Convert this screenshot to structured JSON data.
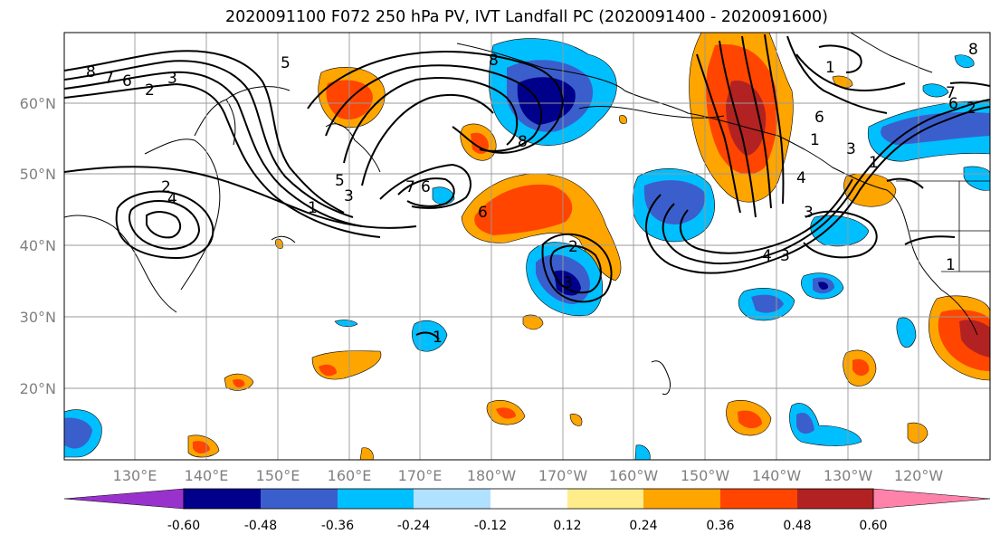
{
  "title": "2020091100 F072 250 hPa PV, IVT Landfall PC (2020091400 - 2020091600)",
  "lat_labels": [
    "60°N",
    "50°N",
    "40°N",
    "30°N",
    "20°N"
  ],
  "lon_labels": [
    "130°E",
    "140°E",
    "150°E",
    "160°E",
    "170°E",
    "180°W",
    "170°W",
    "160°W",
    "150°W",
    "140°W",
    "130°W",
    "120°W"
  ],
  "colorbar": {
    "colors": [
      "#9932cc",
      "#00008b",
      "#3a5fcd",
      "#00bfff",
      "#b0e2ff",
      "#ffffff",
      "#ffec8b",
      "#ffa500",
      "#ff4500",
      "#b22222",
      "#ff82ab"
    ],
    "tick_labels": [
      "-0.60",
      "-0.48",
      "-0.36",
      "-0.24",
      "-0.12",
      "0.12",
      "0.24",
      "0.36",
      "0.48",
      "0.60"
    ]
  },
  "contour_labels": [
    "8",
    "7",
    "6",
    "5",
    "3",
    "2",
    "5",
    "3",
    "2",
    "1",
    "4",
    "7",
    "6",
    "6",
    "1",
    "8",
    "8",
    "2",
    "3",
    "6",
    "1",
    "4",
    "3",
    "4",
    "3",
    "1",
    "7",
    "8",
    "6",
    "2",
    "1",
    "3",
    "1"
  ]
}
